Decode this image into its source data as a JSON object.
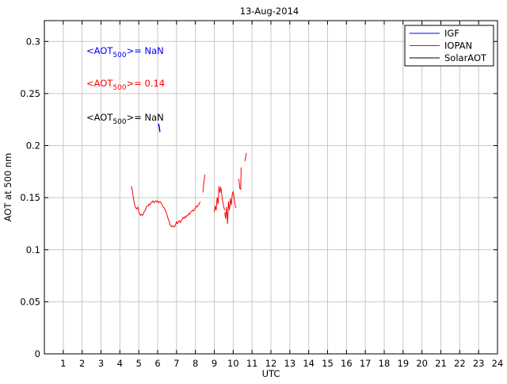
{
  "chart_data": {
    "type": "line",
    "title": "13-Aug-2014",
    "xlabel": "UTC",
    "ylabel": "AOT at 500 nm",
    "xlim": [
      0,
      24
    ],
    "ylim": [
      0,
      0.32
    ],
    "xticks": [
      1,
      2,
      3,
      4,
      5,
      6,
      7,
      8,
      9,
      10,
      11,
      12,
      13,
      14,
      15,
      16,
      17,
      18,
      19,
      20,
      21,
      22,
      23,
      24
    ],
    "yticks": [
      0,
      0.05,
      0.1,
      0.15,
      0.2,
      0.25,
      0.3
    ],
    "ytick_labels": [
      "0",
      "0.05",
      "0.1",
      "0.15",
      "0.2",
      "0.25",
      "0.3"
    ],
    "grid": true,
    "legend_position": "top-right",
    "series": [
      {
        "name": "IGF",
        "color": "#0000ff",
        "segments": [
          [
            [
              6.05,
              0.221
            ],
            [
              6.09,
              0.217
            ],
            [
              6.12,
              0.213
            ]
          ]
        ]
      },
      {
        "name": "IOPAN",
        "color": "#ff0000",
        "segments": [
          [
            [
              4.6,
              0.161
            ],
            [
              4.65,
              0.158
            ],
            [
              4.7,
              0.152
            ],
            [
              4.75,
              0.146
            ],
            [
              4.8,
              0.142
            ],
            [
              4.85,
              0.14
            ],
            [
              4.9,
              0.139
            ],
            [
              4.95,
              0.141
            ],
            [
              5.0,
              0.137
            ],
            [
              5.05,
              0.134
            ],
            [
              5.1,
              0.133
            ],
            [
              5.15,
              0.134
            ],
            [
              5.2,
              0.133
            ],
            [
              5.25,
              0.135
            ],
            [
              5.3,
              0.137
            ],
            [
              5.35,
              0.138
            ],
            [
              5.4,
              0.141
            ],
            [
              5.45,
              0.142
            ],
            [
              5.5,
              0.142
            ],
            [
              5.55,
              0.144
            ],
            [
              5.6,
              0.143
            ],
            [
              5.65,
              0.145
            ],
            [
              5.7,
              0.146
            ],
            [
              5.75,
              0.147
            ],
            [
              5.8,
              0.145
            ],
            [
              5.85,
              0.146
            ],
            [
              5.9,
              0.147
            ],
            [
              5.95,
              0.146
            ],
            [
              6.0,
              0.147
            ],
            [
              6.05,
              0.145
            ],
            [
              6.1,
              0.146
            ],
            [
              6.15,
              0.146
            ],
            [
              6.2,
              0.144
            ],
            [
              6.25,
              0.143
            ],
            [
              6.3,
              0.141
            ],
            [
              6.35,
              0.14
            ],
            [
              6.4,
              0.138
            ],
            [
              6.45,
              0.136
            ],
            [
              6.5,
              0.133
            ],
            [
              6.55,
              0.13
            ],
            [
              6.6,
              0.128
            ],
            [
              6.65,
              0.124
            ],
            [
              6.7,
              0.123
            ],
            [
              6.75,
              0.122
            ],
            [
              6.8,
              0.123
            ],
            [
              6.85,
              0.122
            ],
            [
              6.9,
              0.122
            ],
            [
              6.95,
              0.124
            ],
            [
              7.0,
              0.127
            ],
            [
              7.05,
              0.125
            ],
            [
              7.1,
              0.127
            ],
            [
              7.15,
              0.128
            ],
            [
              7.2,
              0.126
            ],
            [
              7.25,
              0.128
            ],
            [
              7.3,
              0.129
            ],
            [
              7.35,
              0.131
            ],
            [
              7.4,
              0.13
            ],
            [
              7.45,
              0.132
            ],
            [
              7.5,
              0.131
            ],
            [
              7.55,
              0.133
            ],
            [
              7.6,
              0.133
            ],
            [
              7.65,
              0.135
            ],
            [
              7.7,
              0.134
            ],
            [
              7.75,
              0.136
            ],
            [
              7.8,
              0.137
            ],
            [
              7.85,
              0.138
            ],
            [
              7.9,
              0.137
            ],
            [
              7.95,
              0.139
            ],
            [
              8.0,
              0.14
            ],
            [
              8.05,
              0.142
            ],
            [
              8.1,
              0.141
            ],
            [
              8.15,
              0.143
            ],
            [
              8.2,
              0.144
            ],
            [
              8.25,
              0.146
            ]
          ],
          [
            [
              8.4,
              0.155
            ],
            [
              8.45,
              0.165
            ],
            [
              8.5,
              0.172
            ]
          ],
          [
            [
              9.0,
              0.136
            ],
            [
              9.05,
              0.142
            ],
            [
              9.1,
              0.138
            ],
            [
              9.15,
              0.15
            ],
            [
              9.2,
              0.144
            ],
            [
              9.25,
              0.161
            ],
            [
              9.3,
              0.155
            ],
            [
              9.35,
              0.16
            ],
            [
              9.4,
              0.152
            ],
            [
              9.45,
              0.146
            ],
            [
              9.5,
              0.141
            ],
            [
              9.55,
              0.138
            ]
          ],
          [
            [
              9.55,
              0.136
            ],
            [
              9.6,
              0.13
            ],
            [
              9.65,
              0.141
            ],
            [
              9.7,
              0.125
            ],
            [
              9.75,
              0.146
            ],
            [
              9.8,
              0.138
            ],
            [
              9.85,
              0.149
            ],
            [
              9.9,
              0.143
            ],
            [
              9.95,
              0.153
            ],
            [
              10.0,
              0.156
            ],
            [
              10.05,
              0.15
            ],
            [
              10.1,
              0.143
            ],
            [
              10.15,
              0.14
            ]
          ],
          [
            [
              10.3,
              0.168
            ],
            [
              10.35,
              0.159
            ],
            [
              10.4,
              0.158
            ],
            [
              10.42,
              0.179
            ]
          ],
          [
            [
              10.62,
              0.185
            ],
            [
              10.66,
              0.189
            ],
            [
              10.7,
              0.193
            ]
          ]
        ]
      },
      {
        "name": "SolarAOT",
        "color": "#000000",
        "segments": []
      }
    ],
    "annotations": [
      {
        "series": "IGF",
        "color": "#0000ff",
        "prefix": "<AOT",
        "subscript": "500",
        "suffix": ">=  NaN"
      },
      {
        "series": "IOPAN",
        "color": "#ff0000",
        "prefix": "<AOT",
        "subscript": "500",
        "suffix": ">= 0.14"
      },
      {
        "series": "SolarAOT",
        "color": "#000000",
        "prefix": "<AOT",
        "subscript": "500",
        "suffix": ">=  NaN"
      }
    ]
  }
}
